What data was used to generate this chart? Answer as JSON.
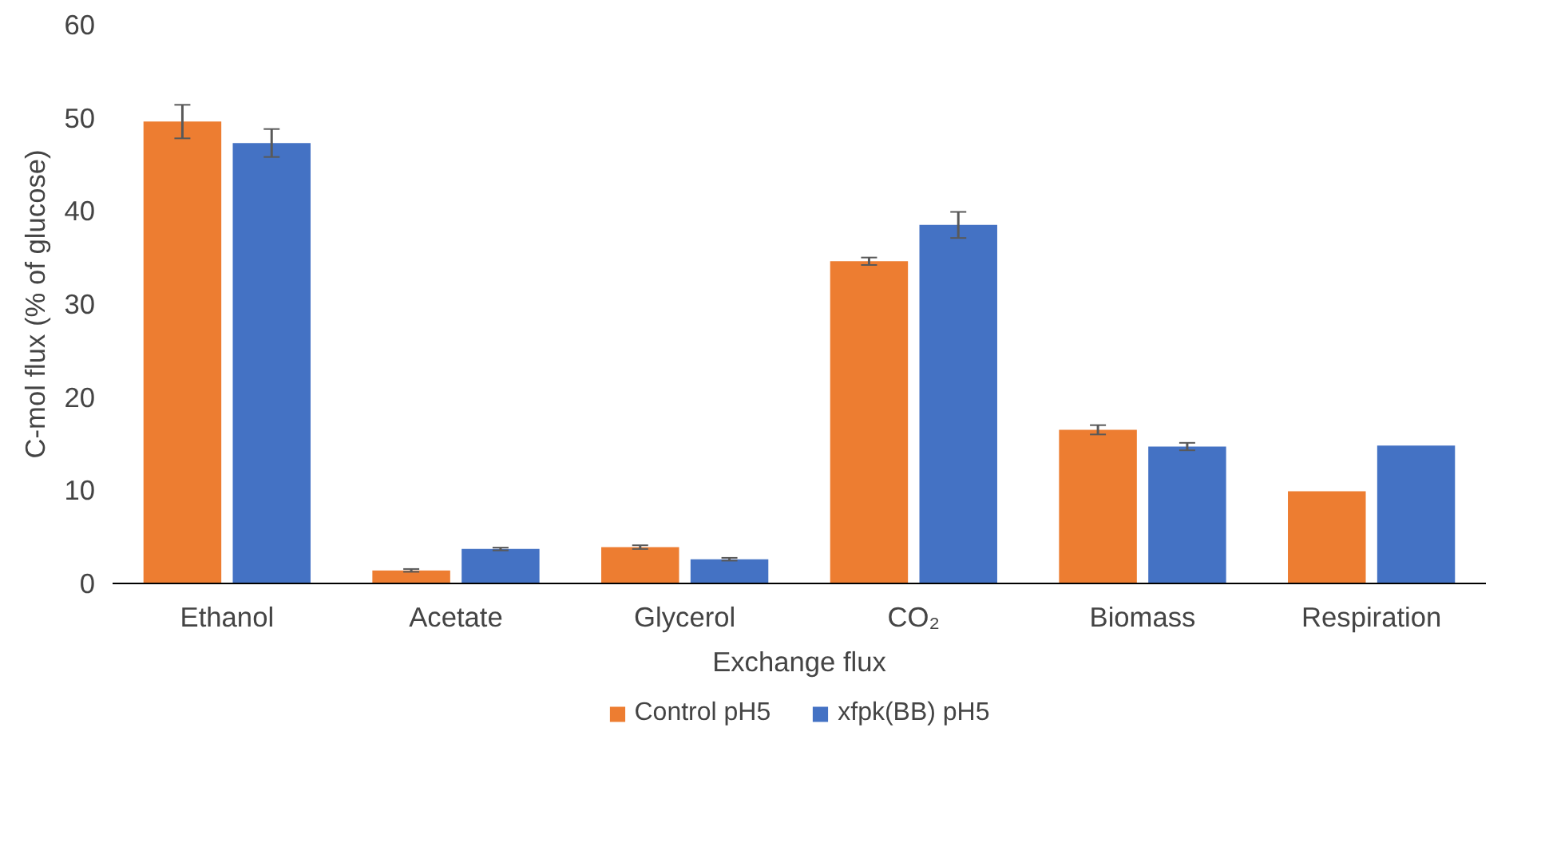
{
  "chart_data": {
    "type": "bar",
    "xlabel": "Exchange flux",
    "ylabel": "C-mol flux (% of glucose)",
    "categories": [
      "Ethanol",
      "Acetate",
      "Glycerol",
      "CO₂",
      "Biomass",
      "Respiration"
    ],
    "series": [
      {
        "name": "Control pH5",
        "color": "#ed7d31",
        "values": [
          49.6,
          1.4,
          3.9,
          34.6,
          16.5,
          9.9
        ],
        "errors": [
          1.8,
          0.15,
          0.2,
          0.4,
          0.5,
          null
        ]
      },
      {
        "name": "xfpk(BB) pH5",
        "color": "#4472c4",
        "values": [
          47.3,
          3.7,
          2.6,
          38.5,
          14.7,
          14.8
        ],
        "errors": [
          1.5,
          0.15,
          0.15,
          1.4,
          0.4,
          null
        ]
      }
    ],
    "ylim": [
      0,
      60
    ],
    "yticks": [
      0,
      10,
      20,
      30,
      40,
      50,
      60
    ],
    "grid": false,
    "legend": "bottom"
  }
}
